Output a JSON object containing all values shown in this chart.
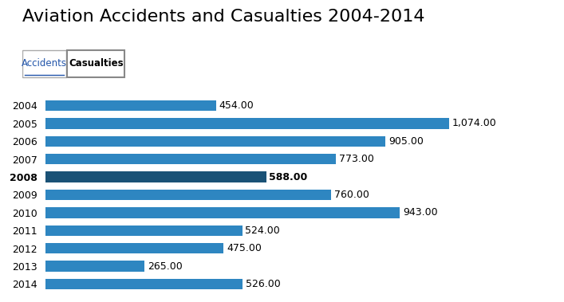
{
  "title": "Aviation Accidents and Casualties 2004-2014",
  "tab_accidents": "Accidents",
  "tab_casualties": "Casualties",
  "years": [
    2014,
    2013,
    2012,
    2011,
    2010,
    2009,
    2008,
    2007,
    2006,
    2005,
    2004
  ],
  "values": [
    526,
    265,
    475,
    524,
    943,
    760,
    588,
    773,
    905,
    1074,
    454
  ],
  "bar_color_default": "#2E86C1",
  "bar_color_highlight": "#1A5276",
  "highlight_year": 2008,
  "background_color": "#ffffff",
  "title_fontsize": 16,
  "label_fontsize": 9,
  "axis_label_fontsize": 9,
  "xlim": [
    0,
    1200
  ]
}
